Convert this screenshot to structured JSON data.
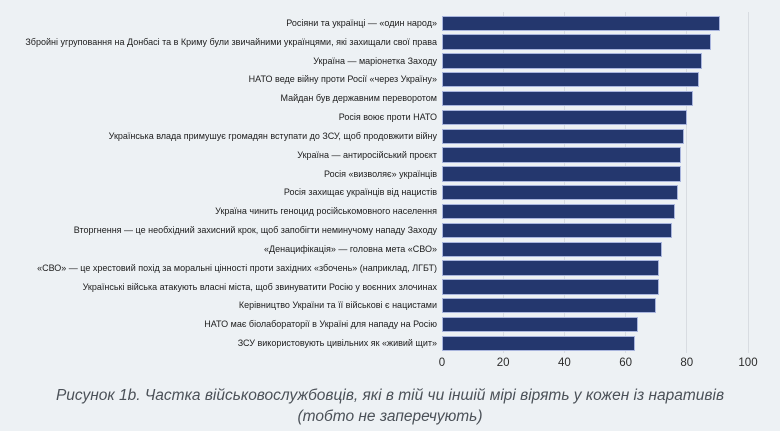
{
  "chart_data": {
    "type": "bar",
    "orientation": "horizontal",
    "title": "",
    "xlabel": "",
    "ylabel": "",
    "xlim": [
      0,
      100
    ],
    "x_ticks": [
      0,
      20,
      40,
      60,
      80,
      100
    ],
    "grid": "vertical",
    "legend": "none",
    "bar_color": "#24376e",
    "bar_border_color": "#a9b5dd",
    "gridline_color": "#d8dce1",
    "background_color": "#edf1f4",
    "categories": [
      "Росіяни та українці — «один народ»",
      "Збройні угруповання на Донбасі та в Криму були звичайними українцями, які захищали свої права",
      "Україна — маріонетка Заходу",
      "НАТО веде війну проти Росії «через Україну»",
      "Майдан був державним переворотом",
      "Росія воює проти НАТО",
      "Українська влада примушує громадян вступати до ЗСУ, щоб продовжити війну",
      "Україна — антиросійський проєкт",
      "Росія «визволяє» українців",
      "Росія захищає українців від нацистів",
      "Україна чинить геноцид російськомовного населення",
      "Вторгнення — це необхідний захисний крок, щоб запобігти неминучому нападу Заходу",
      "«Денацифікація» — головна мета «СВО»",
      "«СВО» — це хрестовий похід за моральні цінності проти західних «збочень» (наприклад, ЛГБТ)",
      "Українські війська атакують власні міста, щоб звинуватити Росію у воєнних злочинах",
      "Керівництво України та її військові є нацистами",
      "НАТО має біолабораторії в Україні для нападу на Росію",
      "ЗСУ використовують цивільних як «живий щит»"
    ],
    "values": [
      91,
      88,
      85,
      84,
      82,
      80,
      79,
      78,
      78,
      77,
      76,
      75,
      72,
      71,
      71,
      70,
      64,
      63
    ]
  },
  "caption": {
    "line1": "Рисунок 1b. Частка військовослужбовців, які в тій чи іншій мірі вірять у кожен із наративів",
    "line2": "(тобто не заперечують)"
  }
}
